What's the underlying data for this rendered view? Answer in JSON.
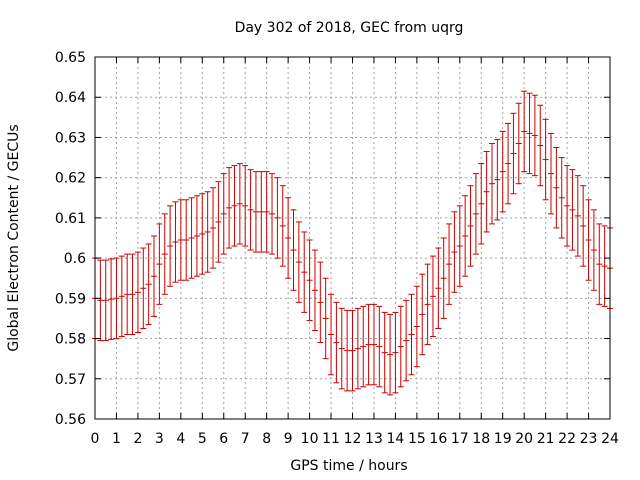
{
  "chart_data": {
    "type": "line",
    "title": "Day 302 of 2018, GEC from uqrg",
    "xlabel": "GPS time / hours",
    "ylabel": "Global Electron Content / GECUs",
    "xlim": [
      0,
      24
    ],
    "ylim": [
      0.56,
      0.65
    ],
    "xticks": [
      "0",
      "1",
      "2",
      "3",
      "4",
      "5",
      "6",
      "7",
      "8",
      "9",
      "10",
      "11",
      "12",
      "13",
      "14",
      "15",
      "16",
      "17",
      "18",
      "19",
      "20",
      "21",
      "22",
      "23",
      "24"
    ],
    "yticks": [
      "0.56",
      "0.57",
      "0.58",
      "0.59",
      "0.6",
      "0.61",
      "0.62",
      "0.63",
      "0.64",
      "0.65"
    ],
    "grid": true,
    "error_half_width": 0.01,
    "series": [
      {
        "color": "#cc0000",
        "x": [
          0,
          0.25,
          0.5,
          0.75,
          1,
          1.25,
          1.5,
          1.75,
          2,
          2.25,
          2.5,
          2.75,
          3,
          3.25,
          3.5,
          3.75,
          4,
          4.25,
          4.5,
          4.75,
          5,
          5.25,
          5.5,
          5.75,
          6,
          6.25,
          6.5,
          6.75,
          7,
          7.25,
          7.5,
          7.75,
          8,
          8.25,
          8.5,
          8.75,
          9,
          9.25,
          9.5,
          9.75,
          10,
          10.25,
          10.5,
          10.75,
          11,
          11.25,
          11.5,
          11.75,
          12,
          12.25,
          12.5,
          12.75,
          13,
          13.25,
          13.5,
          13.75,
          14,
          14.25,
          14.5,
          14.75,
          15,
          15.25,
          15.5,
          15.75,
          16,
          16.25,
          16.5,
          16.75,
          17,
          17.25,
          17.5,
          17.75,
          18,
          18.25,
          18.5,
          18.75,
          19,
          19.25,
          19.5,
          19.75,
          20,
          20.25,
          20.5,
          20.75,
          21,
          21.25,
          21.5,
          21.75,
          22,
          22.25,
          22.5,
          22.75,
          23,
          23.25,
          23.5,
          23.75,
          24
        ],
        "y": [
          0.59,
          0.5895,
          0.5895,
          0.5898,
          0.59,
          0.5905,
          0.591,
          0.591,
          0.5915,
          0.5925,
          0.5935,
          0.5955,
          0.5985,
          0.601,
          0.603,
          0.604,
          0.6045,
          0.6045,
          0.605,
          0.6055,
          0.606,
          0.6065,
          0.6075,
          0.609,
          0.611,
          0.6125,
          0.613,
          0.6135,
          0.613,
          0.612,
          0.6115,
          0.6115,
          0.6115,
          0.611,
          0.61,
          0.608,
          0.605,
          0.602,
          0.599,
          0.5965,
          0.5945,
          0.592,
          0.589,
          0.585,
          0.581,
          0.579,
          0.5775,
          0.577,
          0.577,
          0.5775,
          0.578,
          0.5785,
          0.5785,
          0.578,
          0.5765,
          0.576,
          0.5765,
          0.578,
          0.5795,
          0.581,
          0.583,
          0.586,
          0.5885,
          0.5905,
          0.5925,
          0.595,
          0.5985,
          0.6015,
          0.603,
          0.6055,
          0.608,
          0.611,
          0.6135,
          0.6165,
          0.6185,
          0.6195,
          0.6215,
          0.6235,
          0.626,
          0.6285,
          0.6315,
          0.631,
          0.6305,
          0.628,
          0.6245,
          0.621,
          0.6175,
          0.615,
          0.613,
          0.612,
          0.6105,
          0.608,
          0.6045,
          0.602,
          0.5985,
          0.598,
          0.5975
        ]
      }
    ]
  }
}
